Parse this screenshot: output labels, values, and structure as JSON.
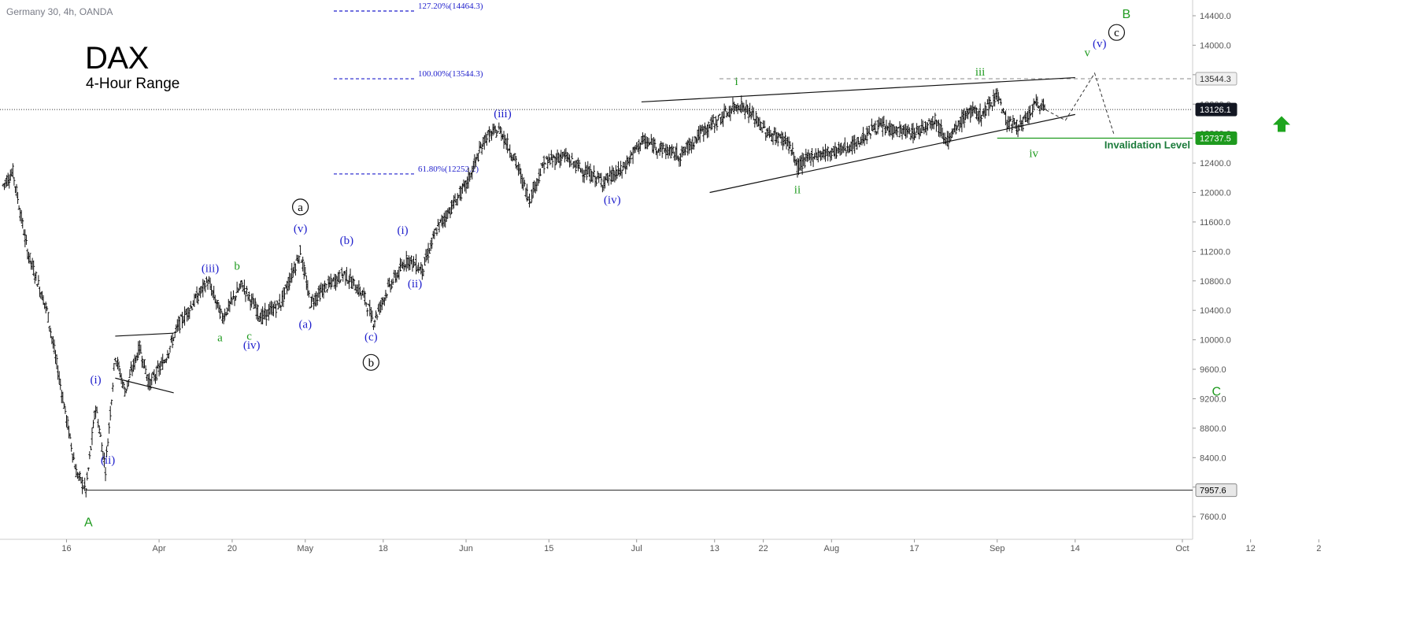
{
  "header": {
    "symbol_line": "Germany 30, 4h, OANDA",
    "title": "DAX",
    "subtitle": "4-Hour Range"
  },
  "colors": {
    "blue": "#1f1fcc",
    "green": "#1e9a1e",
    "teal_green": "#1a7a3a",
    "black": "#000000",
    "axis": "#555555",
    "grid_dash": "#888888",
    "arrow_green": "#1ea51e"
  },
  "chart_data": {
    "type": "ohlc",
    "instrument": "Germany 30",
    "timeframe": "4h",
    "source": "OANDA",
    "y_axis": {
      "ticks": [
        7600,
        8000,
        8400,
        8800,
        9200,
        9600,
        10000,
        10400,
        10800,
        11200,
        11600,
        12000,
        12400,
        12800,
        13200,
        13600,
        14000,
        14400
      ],
      "tick_labels": [
        "7600.0",
        "8000.0",
        "8400.0",
        "8800.0",
        "9200.0",
        "9600.0",
        "10000.0",
        "10400.0",
        "10800.0",
        "11200.0",
        "11600.0",
        "12000.0",
        "12400.0",
        "12800.0",
        "13200.0",
        "13600.0",
        "14000.0",
        "14400.0"
      ],
      "range": [
        7280,
        14720
      ],
      "side": "right"
    },
    "x_axis": {
      "tick_labels": [
        "16",
        "Apr",
        "20",
        "May",
        "18",
        "Jun",
        "15",
        "Jul",
        "13",
        "22",
        "Aug",
        "17",
        "Sep",
        "14",
        "Oct",
        "12",
        "2"
      ],
      "tick_index": [
        13,
        32,
        47,
        62,
        78,
        95,
        112,
        130,
        146,
        156,
        170,
        187,
        204,
        220,
        242,
        256,
        270
      ]
    },
    "price_tags": [
      {
        "label": "13544.3",
        "value": 13544.3,
        "style": "gray"
      },
      {
        "label": "13126.1",
        "value": 13126.1,
        "style": "dark"
      },
      {
        "label": "12737.5",
        "value": 12737.5,
        "style": "green"
      },
      {
        "label": "7957.6",
        "value": 7957.6,
        "style": "gray-dark"
      }
    ],
    "fib_levels": [
      {
        "label": "127.20%(14464.3)",
        "value": 14464.3
      },
      {
        "label": "100.00%(13544.3)",
        "value": 13544.3
      },
      {
        "label": "61.80%(12252.2)",
        "value": 12252.2
      }
    ],
    "horizontal_lines": [
      {
        "value": 13544.3,
        "style": "dashed"
      },
      {
        "value": 13126.1,
        "style": "dotted"
      },
      {
        "value": 12737.5,
        "style": "green-solid"
      },
      {
        "value": 7957.6,
        "style": "solid"
      }
    ],
    "invalidation_label": "Invalidation Level",
    "key_points": [
      [
        0,
        12100
      ],
      [
        2,
        12280
      ],
      [
        5,
        11200
      ],
      [
        9,
        10400
      ],
      [
        12,
        9300
      ],
      [
        15,
        8200
      ],
      [
        17,
        7960
      ],
      [
        19,
        9100
      ],
      [
        21,
        8250
      ],
      [
        23,
        9800
      ],
      [
        25,
        9300
      ],
      [
        28,
        9900
      ],
      [
        30,
        9400
      ],
      [
        33,
        9700
      ],
      [
        36,
        10200
      ],
      [
        42,
        10800
      ],
      [
        45,
        10300
      ],
      [
        49,
        10750
      ],
      [
        53,
        10300
      ],
      [
        57,
        10500
      ],
      [
        61,
        11200
      ],
      [
        63,
        10500
      ],
      [
        66,
        10700
      ],
      [
        70,
        10900
      ],
      [
        74,
        10600
      ],
      [
        76,
        10250
      ],
      [
        79,
        10700
      ],
      [
        83,
        11100
      ],
      [
        86,
        10950
      ],
      [
        89,
        11500
      ],
      [
        92,
        11800
      ],
      [
        95,
        12100
      ],
      [
        99,
        12750
      ],
      [
        102,
        12850
      ],
      [
        105,
        12450
      ],
      [
        108,
        11900
      ],
      [
        111,
        12400
      ],
      [
        115,
        12500
      ],
      [
        119,
        12300
      ],
      [
        123,
        12150
      ],
      [
        127,
        12300
      ],
      [
        131,
        12700
      ],
      [
        135,
        12600
      ],
      [
        139,
        12500
      ],
      [
        143,
        12800
      ],
      [
        147,
        13000
      ],
      [
        151,
        13200
      ],
      [
        153,
        13100
      ],
      [
        157,
        12800
      ],
      [
        161,
        12700
      ],
      [
        163,
        12350
      ],
      [
        166,
        12500
      ],
      [
        170,
        12550
      ],
      [
        175,
        12650
      ],
      [
        179,
        12900
      ],
      [
        183,
        12850
      ],
      [
        187,
        12800
      ],
      [
        191,
        13000
      ],
      [
        194,
        12700
      ],
      [
        198,
        13100
      ],
      [
        201,
        13050
      ],
      [
        204,
        13350
      ],
      [
        206,
        12950
      ],
      [
        209,
        12900
      ],
      [
        212,
        13200
      ],
      [
        214,
        13150
      ]
    ],
    "wave_labels": [
      {
        "text": "A",
        "idx": 17.5,
        "value": 7470,
        "color": "green",
        "font": "sans"
      },
      {
        "text": "(i)",
        "idx": 19,
        "value": 9410,
        "color": "blue"
      },
      {
        "text": "(ii)",
        "idx": 21.5,
        "value": 8320,
        "color": "blue"
      },
      {
        "text": "(iii)",
        "idx": 42.5,
        "value": 10920,
        "color": "blue"
      },
      {
        "text": "b",
        "idx": 48,
        "value": 10950,
        "color": "green"
      },
      {
        "text": "a",
        "idx": 44.5,
        "value": 9980,
        "color": "green"
      },
      {
        "text": "c",
        "idx": 50.5,
        "value": 10000,
        "color": "green"
      },
      {
        "text": "(iv)",
        "idx": 51,
        "value": 9880,
        "color": "blue"
      },
      {
        "text": "(v)",
        "idx": 61,
        "value": 11460,
        "color": "blue"
      },
      {
        "text": "a",
        "idx": 61,
        "value": 11750,
        "color": "black",
        "circled": true
      },
      {
        "text": "(a)",
        "idx": 62,
        "value": 10160,
        "color": "blue"
      },
      {
        "text": "(b)",
        "idx": 70.5,
        "value": 11300,
        "color": "blue"
      },
      {
        "text": "(c)",
        "idx": 75.5,
        "value": 9990,
        "color": "blue"
      },
      {
        "text": "b",
        "idx": 75.5,
        "value": 9640,
        "color": "black",
        "circled": true
      },
      {
        "text": "(i)",
        "idx": 82,
        "value": 11440,
        "color": "blue"
      },
      {
        "text": "(ii)",
        "idx": 84.5,
        "value": 10710,
        "color": "blue"
      },
      {
        "text": "(iii)",
        "idx": 102.5,
        "value": 13020,
        "color": "blue"
      },
      {
        "text": "(iv)",
        "idx": 125,
        "value": 11850,
        "color": "blue"
      },
      {
        "text": "i",
        "idx": 150.5,
        "value": 13460,
        "color": "green"
      },
      {
        "text": "ii",
        "idx": 163,
        "value": 11990,
        "color": "green"
      },
      {
        "text": "iii",
        "idx": 200.5,
        "value": 13590,
        "color": "green"
      },
      {
        "text": "iv",
        "idx": 211.5,
        "value": 12480,
        "color": "green"
      },
      {
        "text": "v",
        "idx": 222.5,
        "value": 13850,
        "color": "green"
      },
      {
        "text": "(v)",
        "idx": 225,
        "value": 13970,
        "color": "blue"
      },
      {
        "text": "c",
        "idx": 228.5,
        "value": 14120,
        "color": "black",
        "circled": true
      },
      {
        "text": "B",
        "idx": 230.5,
        "value": 14370,
        "color": "green",
        "font": "sans"
      },
      {
        "text": "C",
        "idx": 249,
        "value": 9240,
        "color": "green",
        "font": "sans"
      }
    ]
  }
}
